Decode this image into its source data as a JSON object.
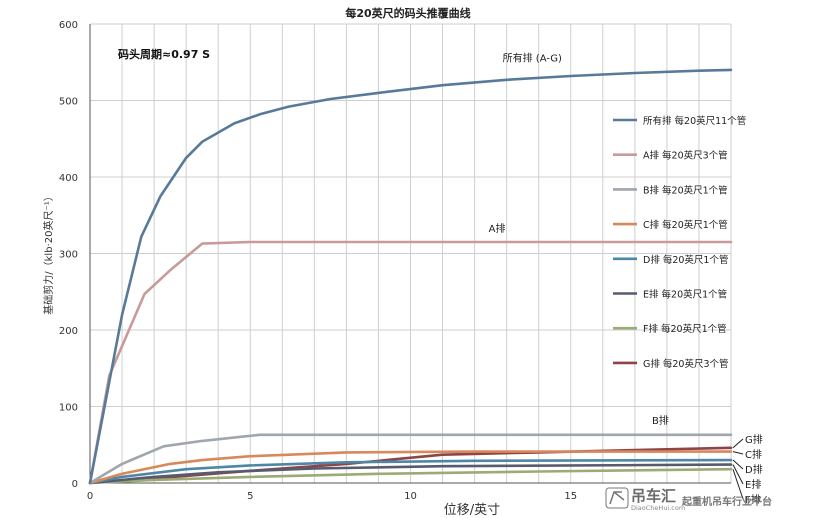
{
  "chart_data": {
    "type": "line",
    "title": "每20英尺的码头推覆曲线",
    "period_note": "码头周期≈0.97 S",
    "xlabel": "位移/英寸",
    "ylabel": "基础剪力/（klb·20英尺⁻¹）",
    "xlim": [
      0,
      20
    ],
    "ylim": [
      0,
      600
    ],
    "xticks": [
      0,
      5,
      10,
      15
    ],
    "yticks": [
      0,
      100,
      200,
      300,
      400,
      500,
      600
    ],
    "grid": true,
    "legend_position": "right",
    "series": [
      {
        "name": "所有排 每20英尺11个管",
        "color": "#587a9a",
        "points": [
          [
            0,
            0
          ],
          [
            1,
            220
          ],
          [
            1.6,
            322
          ],
          [
            2.2,
            375
          ],
          [
            3,
            425
          ],
          [
            3.5,
            446
          ],
          [
            4.5,
            470
          ],
          [
            5.3,
            482
          ],
          [
            6.2,
            492
          ],
          [
            7.5,
            502
          ],
          [
            9,
            510
          ],
          [
            11,
            520
          ],
          [
            13,
            527
          ],
          [
            15,
            532
          ],
          [
            17,
            536
          ],
          [
            19,
            539
          ],
          [
            20,
            540
          ]
        ]
      },
      {
        "name": "A排 每20英尺3个管",
        "color": "#c99a9a",
        "points": [
          [
            0,
            0
          ],
          [
            0.6,
            140
          ],
          [
            1.7,
            247
          ],
          [
            2.5,
            278
          ],
          [
            3.5,
            313
          ],
          [
            5,
            315
          ],
          [
            10,
            315
          ],
          [
            20,
            315
          ]
        ]
      },
      {
        "name": "B排 每20英尺1个管",
        "color": "#a0a6ab",
        "points": [
          [
            0,
            0
          ],
          [
            1,
            25
          ],
          [
            2.3,
            48
          ],
          [
            3.5,
            55
          ],
          [
            5.3,
            63
          ],
          [
            10,
            63
          ],
          [
            20,
            63
          ]
        ]
      },
      {
        "name": "C排 每20英尺1个管",
        "color": "#d8885a",
        "points": [
          [
            0,
            0
          ],
          [
            1,
            12
          ],
          [
            2.5,
            25
          ],
          [
            3.5,
            30
          ],
          [
            5,
            35
          ],
          [
            8,
            40
          ],
          [
            12,
            41
          ],
          [
            20,
            41
          ]
        ]
      },
      {
        "name": "D排 每20英尺1个管",
        "color": "#4e87a6",
        "points": [
          [
            0,
            0
          ],
          [
            1,
            8
          ],
          [
            3,
            18
          ],
          [
            5,
            23
          ],
          [
            8,
            27
          ],
          [
            12,
            29
          ],
          [
            20,
            30
          ]
        ]
      },
      {
        "name": "E排 每20英尺1个管",
        "color": "#565c6e",
        "points": [
          [
            0,
            0
          ],
          [
            2,
            8
          ],
          [
            4,
            14
          ],
          [
            7,
            19
          ],
          [
            11,
            22
          ],
          [
            20,
            24
          ]
        ]
      },
      {
        "name": "F排 每20英尺1个管",
        "color": "#9aab74",
        "points": [
          [
            0,
            0
          ],
          [
            2,
            4
          ],
          [
            5,
            8
          ],
          [
            9,
            12
          ],
          [
            14,
            15
          ],
          [
            20,
            18
          ]
        ]
      },
      {
        "name": "G排 每20英尺3个管",
        "color": "#8e4448",
        "points": [
          [
            0,
            0
          ],
          [
            2,
            6
          ],
          [
            5,
            16
          ],
          [
            8,
            25
          ],
          [
            11,
            37
          ],
          [
            14,
            40
          ],
          [
            17,
            43
          ],
          [
            20,
            46
          ]
        ]
      }
    ],
    "annotations": [
      {
        "text": "所有排  (A-G)",
        "x": 13.8,
        "y": 551
      },
      {
        "text": "A排",
        "x": 12.7,
        "y": 328
      },
      {
        "text": "B排",
        "x": 17.8,
        "y": 77
      }
    ],
    "end_labels": [
      {
        "text": "G排",
        "value": 46
      },
      {
        "text": "C排",
        "value": 41
      },
      {
        "text": "D排",
        "value": 30
      },
      {
        "text": "E排",
        "value": 24
      },
      {
        "text": "F排",
        "value": 18
      }
    ]
  },
  "watermark": {
    "brand": "吊车汇",
    "site": "DiaoCheHui.com",
    "slogan": "起重机吊车行业平台",
    "brand_color": "#6b6b6b"
  }
}
